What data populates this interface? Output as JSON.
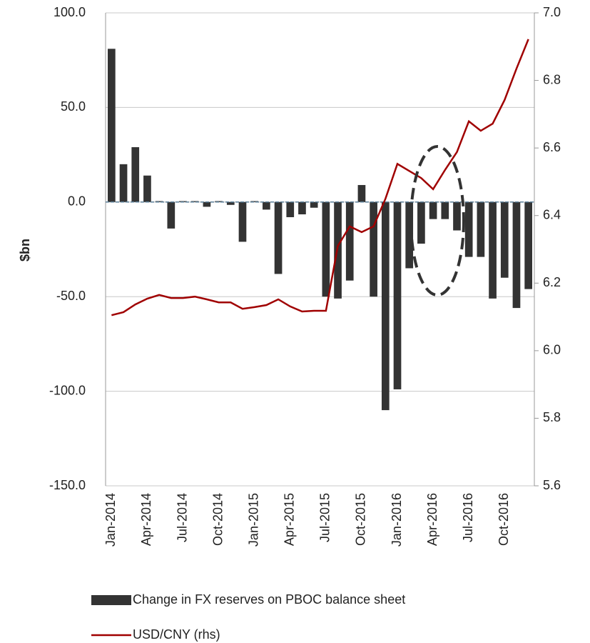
{
  "chart_data": {
    "type": "bar-line",
    "y_label": "$bn",
    "categories": [
      "Jan-2014",
      null,
      null,
      "Apr-2014",
      null,
      null,
      "Jul-2014",
      null,
      null,
      "Oct-2014",
      null,
      null,
      "Jan-2015",
      null,
      null,
      "Apr-2015",
      null,
      null,
      "Jul-2015",
      null,
      null,
      "Oct-2015",
      null,
      null,
      "Jan-2016",
      null,
      null,
      "Apr-2016",
      null,
      null,
      "Jul-2016",
      null,
      null,
      "Oct-2016",
      null,
      null
    ],
    "series": [
      {
        "name": "Change in FX reserves on PBOC balance sheet",
        "type": "bar",
        "color": "#333333",
        "values": [
          81,
          20,
          29,
          14,
          0.5,
          -14,
          0.5,
          0.5,
          -2.5,
          0.5,
          -1.5,
          -21,
          0.5,
          -4,
          -38,
          -8,
          -6.5,
          -3,
          -50,
          -51,
          -41.5,
          9,
          -50,
          -110,
          -99,
          -35,
          -22,
          -9,
          -9,
          -15,
          -29,
          -29,
          -51,
          -40,
          -56,
          -46
        ]
      },
      {
        "name": "USD/CNY (rhs)",
        "type": "line",
        "axis": "y2",
        "color": "#a00000",
        "values": [
          6.105,
          6.114,
          6.137,
          6.154,
          6.165,
          6.156,
          6.156,
          6.16,
          6.152,
          6.143,
          6.143,
          6.124,
          6.129,
          6.135,
          6.152,
          6.131,
          6.116,
          6.118,
          6.118,
          6.31,
          6.368,
          6.351,
          6.368,
          6.45,
          6.553,
          6.532,
          6.511,
          6.478,
          6.535,
          6.588,
          6.679,
          6.651,
          6.672,
          6.742,
          6.835,
          6.922
        ]
      }
    ],
    "ylim": [
      -150,
      100
    ],
    "yticks": [
      {
        "value": -150,
        "label": "-150.0"
      },
      {
        "value": -100,
        "label": "-100.0"
      },
      {
        "value": -50,
        "label": "-50.0"
      },
      {
        "value": 0,
        "label": "0.0"
      },
      {
        "value": 50,
        "label": "50.0"
      },
      {
        "value": 100,
        "label": "100.0"
      }
    ],
    "y2lim": [
      5.6,
      7.0
    ],
    "y2ticks": [
      5.6,
      5.8,
      {
        "value": 6.0,
        "label": "6.0"
      },
      6.2,
      6.4,
      6.6,
      6.8,
      {
        "value": 7.0,
        "label": "7.0"
      }
    ],
    "grid": true,
    "legend": "bottom"
  }
}
